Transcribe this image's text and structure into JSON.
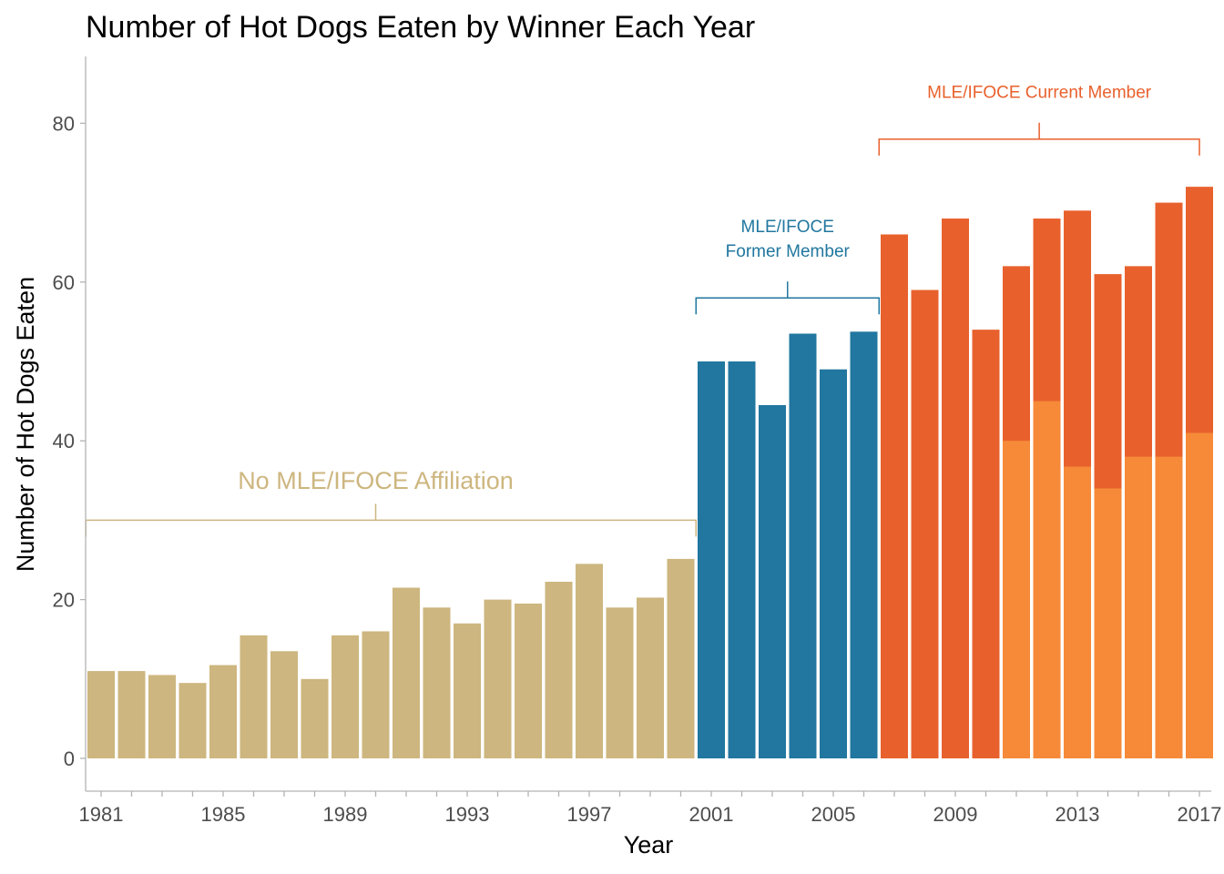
{
  "chart_data": {
    "type": "bar",
    "title": "Number of Hot Dogs Eaten by Winner Each Year",
    "xlabel": "Year",
    "ylabel": "Number of Hot Dogs Eaten",
    "ylim": [
      0,
      88
    ],
    "yticks": [
      "0",
      "20",
      "40",
      "60",
      "80"
    ],
    "xtick_labels": [
      "1981",
      "1985",
      "1989",
      "1993",
      "1997",
      "2001",
      "2005",
      "2009",
      "2013",
      "2017"
    ],
    "grid": false,
    "legend": "none",
    "years": [
      1981,
      1982,
      1983,
      1984,
      1985,
      1986,
      1987,
      1988,
      1989,
      1990,
      1991,
      1992,
      1993,
      1994,
      1995,
      1996,
      1997,
      1998,
      1999,
      2000,
      2001,
      2002,
      2003,
      2004,
      2005,
      2006,
      2007,
      2008,
      2009,
      2010,
      2011,
      2012,
      2013,
      2014,
      2015,
      2016,
      2017
    ],
    "values": [
      11,
      11,
      10.5,
      9.5,
      11.75,
      15.5,
      13.5,
      10,
      15.5,
      16,
      21.5,
      19,
      17,
      20,
      19.5,
      22.25,
      24.5,
      19,
      20.25,
      25.125,
      50,
      50,
      44.5,
      53.5,
      49,
      53.75,
      66,
      59,
      68,
      54,
      62,
      68,
      69,
      61,
      62,
      70,
      72
    ],
    "overlay_values": [
      null,
      null,
      null,
      null,
      null,
      null,
      null,
      null,
      null,
      null,
      null,
      null,
      null,
      null,
      null,
      null,
      null,
      null,
      null,
      null,
      null,
      null,
      null,
      null,
      null,
      null,
      null,
      null,
      null,
      null,
      40,
      45,
      36.75,
      34,
      38,
      38,
      41
    ],
    "groups": [
      "none",
      "none",
      "none",
      "none",
      "none",
      "none",
      "none",
      "none",
      "none",
      "none",
      "none",
      "none",
      "none",
      "none",
      "none",
      "none",
      "none",
      "none",
      "none",
      "none",
      "former",
      "former",
      "former",
      "former",
      "former",
      "former",
      "current",
      "current",
      "current",
      "current",
      "current",
      "current",
      "current",
      "current",
      "current",
      "current",
      "current"
    ],
    "colors": {
      "none": "#cdb67f",
      "former": "#21779f",
      "current": "#e8612d",
      "overlay": "#f68a39",
      "axis": "#b3b3b3",
      "tick_text": "#4d4d4d"
    },
    "annotations": [
      {
        "group": "none",
        "lines": [
          "No MLE/IFOCE Affiliation"
        ],
        "from_year": 1980.5,
        "to_year": 2000.5,
        "bracket_y": 30,
        "tick_year": 1990,
        "text_year": 1990,
        "text_y": 35
      },
      {
        "group": "former",
        "lines": [
          "MLE/IFOCE",
          "Former Member"
        ],
        "from_year": 2000.5,
        "to_year": 2006.5,
        "bracket_y": 58,
        "tick_year": 2003.5,
        "text_y": 64
      },
      {
        "group": "current",
        "lines": [
          "MLE/IFOCE Current Member"
        ],
        "from_year": 2006.5,
        "to_year": 2017,
        "bracket_y": 78,
        "tick_year": 2011.75,
        "text_y": 84
      }
    ]
  }
}
